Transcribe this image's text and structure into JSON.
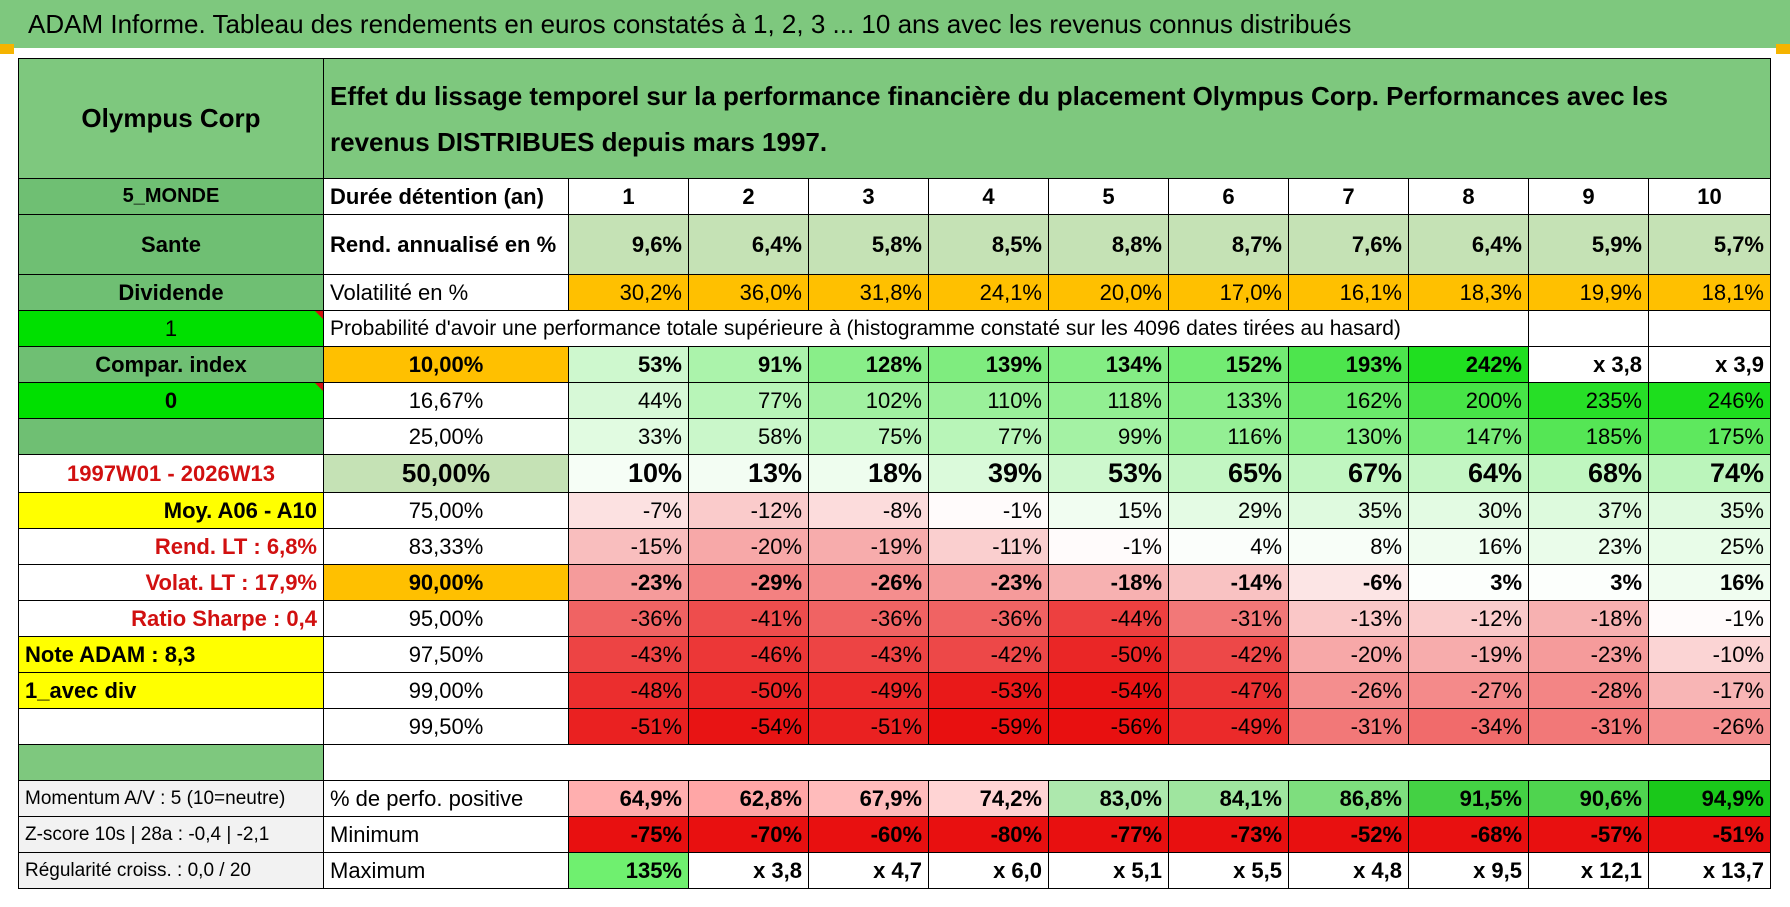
{
  "title": "ADAM Informe. Tableau des rendements en euros constatés à 1, 2, 3 ... 10 ans avec les revenus connus distribués",
  "header": {
    "fund_name": "Olympus Corp",
    "description": "Effet du lissage temporel sur la performance financière du placement Olympus Corp. Performances avec les revenus DISTRIBUES depuis mars 1997."
  },
  "left": {
    "zone": "5_MONDE",
    "sector": "Sante",
    "income": "Dividende",
    "flag1": "1",
    "compar": "Compar. index",
    "flag2": "0",
    "period": "1997W01 - 2026W13",
    "avg": "Moy. A06 - A10",
    "rend_lt": "Rend. LT :    6,8%",
    "volat_lt": "Volat. LT :    17,9%",
    "sharpe": "Ratio Sharpe :    0,4",
    "note": "Note ADAM : 8,3",
    "div_mode": "1_avec div"
  },
  "holding_label": "Durée détention (an)",
  "years": [
    "1",
    "2",
    "3",
    "4",
    "5",
    "6",
    "7",
    "8",
    "9",
    "10"
  ],
  "rend": {
    "label": "Rend. annualisé en %",
    "values": [
      "9,6%",
      "6,4%",
      "5,8%",
      "8,5%",
      "8,8%",
      "8,7%",
      "7,6%",
      "6,4%",
      "5,9%",
      "5,7%"
    ]
  },
  "vol": {
    "label": "Volatilité en %",
    "values": [
      "30,2%",
      "36,0%",
      "31,8%",
      "24,1%",
      "20,0%",
      "17,0%",
      "16,1%",
      "18,3%",
      "19,9%",
      "18,1%"
    ]
  },
  "proba_title": "Probabilité d'avoir une performance totale supérieure à (histogramme constaté sur les 4096 dates tirées au hasard)",
  "quantiles": [
    {
      "label": "10,00%",
      "values": [
        "53%",
        "91%",
        "128%",
        "139%",
        "134%",
        "152%",
        "193%",
        "242%",
        "x 3,8",
        "x 3,9"
      ]
    },
    {
      "label": "16,67%",
      "values": [
        "44%",
        "77%",
        "102%",
        "110%",
        "118%",
        "133%",
        "162%",
        "200%",
        "235%",
        "246%"
      ]
    },
    {
      "label": "25,00%",
      "values": [
        "33%",
        "58%",
        "75%",
        "77%",
        "99%",
        "116%",
        "130%",
        "147%",
        "185%",
        "175%"
      ]
    },
    {
      "label": "50,00%",
      "values": [
        "10%",
        "13%",
        "18%",
        "39%",
        "53%",
        "65%",
        "67%",
        "64%",
        "68%",
        "74%"
      ]
    },
    {
      "label": "75,00%",
      "values": [
        "-7%",
        "-12%",
        "-8%",
        "-1%",
        "15%",
        "29%",
        "35%",
        "30%",
        "37%",
        "35%"
      ]
    },
    {
      "label": "83,33%",
      "values": [
        "-15%",
        "-20%",
        "-19%",
        "-11%",
        "-1%",
        "4%",
        "8%",
        "16%",
        "23%",
        "25%"
      ]
    },
    {
      "label": "90,00%",
      "values": [
        "-23%",
        "-29%",
        "-26%",
        "-23%",
        "-18%",
        "-14%",
        "-6%",
        "3%",
        "3%",
        "16%"
      ]
    },
    {
      "label": "95,00%",
      "values": [
        "-36%",
        "-41%",
        "-36%",
        "-36%",
        "-44%",
        "-31%",
        "-13%",
        "-12%",
        "-18%",
        "-1%"
      ]
    },
    {
      "label": "97,50%",
      "values": [
        "-43%",
        "-46%",
        "-43%",
        "-42%",
        "-50%",
        "-42%",
        "-20%",
        "-19%",
        "-23%",
        "-10%"
      ]
    },
    {
      "label": "99,00%",
      "values": [
        "-48%",
        "-50%",
        "-49%",
        "-53%",
        "-54%",
        "-47%",
        "-26%",
        "-27%",
        "-28%",
        "-17%"
      ]
    },
    {
      "label": "99,50%",
      "values": [
        "-51%",
        "-54%",
        "-51%",
        "-59%",
        "-56%",
        "-49%",
        "-31%",
        "-34%",
        "-31%",
        "-26%"
      ]
    }
  ],
  "bottom": [
    {
      "left": "Momentum A/V : 5 (10=neutre)",
      "label": "% de perfo. positive",
      "values": [
        "64,9%",
        "62,8%",
        "67,9%",
        "74,2%",
        "83,0%",
        "84,1%",
        "86,8%",
        "91,5%",
        "90,6%",
        "94,9%"
      ]
    },
    {
      "left": "Z-score 10s | 28a : -0,4 | -2,1",
      "label": "Minimum",
      "values": [
        "-75%",
        "-70%",
        "-60%",
        "-80%",
        "-77%",
        "-73%",
        "-52%",
        "-68%",
        "-57%",
        "-51%"
      ]
    },
    {
      "left": "Régularité croiss. : 0,0 / 20",
      "label": "Maximum",
      "values": [
        "135%",
        "x 3,8",
        "x 4,7",
        "x 6,0",
        "x 5,1",
        "x 5,5",
        "x 4,8",
        "x 9,5",
        "x 12,1",
        "x 13,7"
      ]
    }
  ],
  "colors": {
    "header_green": "#7ec87e",
    "bright_green": "#00e000",
    "yellow": "#ffff00",
    "orange": "#ffc000",
    "light_green": "#c5e2b5",
    "red_text": "#d11010",
    "heat_positive": "#19c219",
    "heat_negative": "#e81010"
  }
}
